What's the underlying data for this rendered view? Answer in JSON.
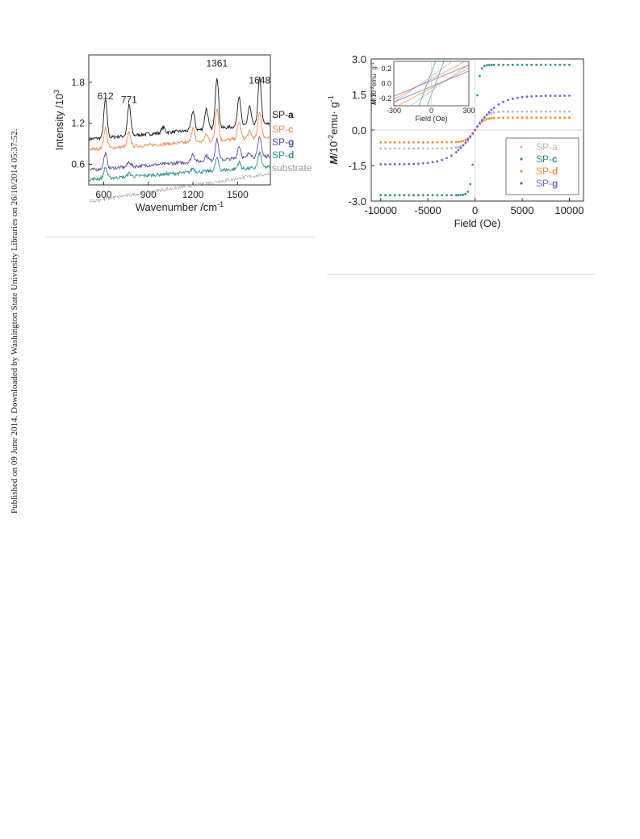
{
  "side_note": "Published on 09 June 2014. Downloaded by Washington State University Libraries on 26/10/2014 05:37:52.",
  "colors": {
    "sp_a": "#1a1a1a",
    "sp_c": "#f08a50",
    "sp_g": "#5a4aa0",
    "sp_d": "#2a8f8a",
    "substrate": "#9a9a9a",
    "mag_a": "#b8b8b8",
    "mag_c": "#2a8f8a",
    "mag_d": "#f08a30",
    "mag_g": "#7a5ad0"
  },
  "chart_data": [
    {
      "type": "line",
      "title": "",
      "xlabel": "Wavenumber /cm",
      "xlabel_sup": "-1",
      "ylabel": "Intensity /10",
      "ylabel_sup": "3",
      "xlim": [
        500,
        1720
      ],
      "ylim": [
        0.3,
        2.2
      ],
      "xticks": [
        "600",
        "900",
        "1200",
        "1500"
      ],
      "xtick_values": [
        600,
        900,
        1200,
        1500
      ],
      "yticks": [
        "0.6",
        "1.2",
        "1.8"
      ],
      "ytick_values": [
        0.6,
        1.2,
        1.8
      ],
      "peak_labels": [
        {
          "text": "612",
          "x": 612,
          "y": 1.55
        },
        {
          "text": "771",
          "x": 771,
          "y": 1.5
        },
        {
          "text": "1361",
          "x": 1361,
          "y": 2.03
        },
        {
          "text": "1648",
          "x": 1648,
          "y": 1.78
        }
      ],
      "series": [
        {
          "name": "SP-",
          "bold": "a",
          "color_key": "sp_a",
          "base": 0.97,
          "slope": 0.22,
          "peaks": [
            [
              612,
              0.55
            ],
            [
              771,
              0.45
            ],
            [
              1000,
              0.08
            ],
            [
              1200,
              0.28
            ],
            [
              1290,
              0.3
            ],
            [
              1361,
              0.75
            ],
            [
              1510,
              0.45
            ],
            [
              1580,
              0.28
            ],
            [
              1648,
              0.68
            ]
          ]
        },
        {
          "name": "SP-",
          "bold": "c",
          "color_key": "sp_c",
          "base": 0.82,
          "slope": 0.18,
          "peaks": [
            [
              612,
              0.3
            ],
            [
              771,
              0.2
            ],
            [
              1200,
              0.2
            ],
            [
              1290,
              0.1
            ],
            [
              1361,
              0.48
            ],
            [
              1510,
              0.25
            ],
            [
              1580,
              0.1
            ],
            [
              1648,
              0.38
            ]
          ]
        },
        {
          "name": "SP-",
          "bold": "g",
          "color_key": "sp_g",
          "base": 0.52,
          "slope": 0.2,
          "peaks": [
            [
              612,
              0.22
            ],
            [
              771,
              0.07
            ],
            [
              1200,
              0.12
            ],
            [
              1290,
              0.08
            ],
            [
              1361,
              0.3
            ],
            [
              1510,
              0.18
            ],
            [
              1580,
              0.08
            ],
            [
              1648,
              0.3
            ]
          ]
        },
        {
          "name": "SP-",
          "bold": "d",
          "color_key": "sp_d",
          "base": 0.38,
          "slope": 0.18,
          "peaks": [
            [
              612,
              0.16
            ],
            [
              771,
              0.05
            ],
            [
              1200,
              0.06
            ],
            [
              1361,
              0.18
            ],
            [
              1510,
              0.1
            ],
            [
              1648,
              0.22
            ]
          ]
        },
        {
          "name": "substrate",
          "bold": "",
          "color_key": "substrate",
          "base": 0.06,
          "slope": 0.4,
          "peaks": []
        }
      ]
    },
    {
      "type": "scatter",
      "title": "",
      "xlabel": "Field (Oe)",
      "ylabel": "M",
      "ylabel_rest": "/10",
      "ylabel_sup": "-2",
      "ylabel_unit": "emu· g",
      "ylabel_unit_sup": "-1",
      "xlim": [
        -11000,
        11500
      ],
      "ylim": [
        -3.0,
        3.0
      ],
      "xticks": [
        "-10000",
        "-5000",
        "0",
        "5000",
        "10000"
      ],
      "xtick_values": [
        -10000,
        -5000,
        0,
        5000,
        10000
      ],
      "yticks": [
        "-3.0",
        "-1.5",
        "0.0",
        "1.5",
        "3.0"
      ],
      "ytick_values": [
        -3.0,
        -1.5,
        0.0,
        1.5,
        3.0
      ],
      "legend_position": "right",
      "series": [
        {
          "name": "SP-a",
          "bold": "",
          "color_key": "mag_a",
          "ms": 0.78,
          "h0": 1100
        },
        {
          "name": "SP-",
          "bold": "c",
          "color_key": "mag_c",
          "ms": 2.75,
          "h0": 420
        },
        {
          "name": "SP-",
          "bold": "d",
          "color_key": "mag_d",
          "ms": 0.52,
          "h0": 900
        },
        {
          "name": "SP-",
          "bold": "g",
          "color_key": "mag_g",
          "ms": 1.45,
          "h0": 2600
        }
      ],
      "inset": {
        "xlabel": "Field (Oe)",
        "ylabel": "M",
        "ylabel_rest": "/10",
        "ylabel_sup": "-2",
        "ylabel_unit": "emu· g",
        "ylabel_unit_sup": "-1",
        "xlim": [
          -300,
          300
        ],
        "ylim": [
          -0.3,
          0.3
        ],
        "xticks": [
          "-300",
          "0",
          "300"
        ],
        "xtick_values": [
          -300,
          0,
          300
        ],
        "yticks": [
          "-0.2",
          "0.0",
          "0.2"
        ],
        "ytick_values": [
          -0.2,
          0.0,
          0.2
        ],
        "lines": [
          {
            "color_key": "mag_a",
            "slope": 0.0012,
            "offset": 0.1
          },
          {
            "color_key": "mag_a",
            "slope": 0.0012,
            "offset": -0.1
          },
          {
            "color_key": "mag_c",
            "slope": 0.0045,
            "offset": 0.15
          },
          {
            "color_key": "mag_c",
            "slope": 0.0045,
            "offset": -0.15
          },
          {
            "color_key": "mag_d",
            "slope": 0.0009,
            "offset": 0.06
          },
          {
            "color_key": "mag_d",
            "slope": 0.0009,
            "offset": -0.06
          },
          {
            "color_key": "mag_g",
            "slope": 0.0007,
            "offset": 0.04
          },
          {
            "color_key": "mag_g",
            "slope": 0.0007,
            "offset": -0.04
          }
        ]
      }
    }
  ]
}
